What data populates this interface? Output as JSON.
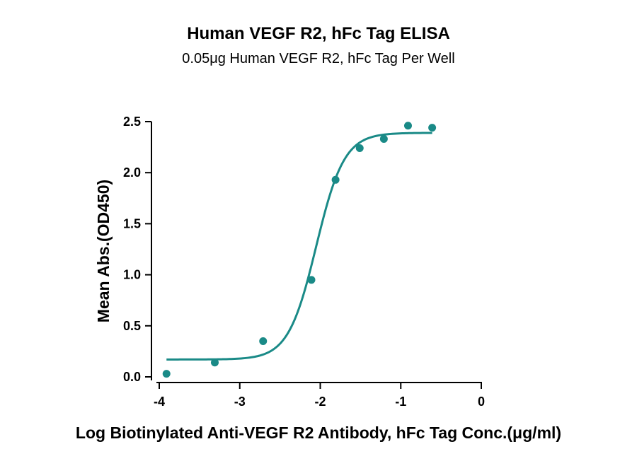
{
  "chart_data": {
    "type": "scatter",
    "title": "Human VEGF R2, hFc Tag ELISA",
    "subtitle": "0.05μg Human VEGF R2, hFc Tag Per Well",
    "xlabel": "Log Biotinylated Anti-VEGF R2 Antibody, hFc Tag Conc.(μg/ml)",
    "ylabel": "Mean Abs.(OD450)",
    "xlim": [
      -4,
      0
    ],
    "ylim": [
      0,
      2.5
    ],
    "x_ticks": [
      -4,
      -3,
      -2,
      -1,
      0
    ],
    "x_tick_labels": [
      "-4",
      "-3",
      "-2",
      "-1",
      "0"
    ],
    "y_ticks": [
      0,
      0.5,
      1.0,
      1.5,
      2.0,
      2.5
    ],
    "y_tick_labels": [
      "0.0",
      "0.5",
      "1.0",
      "1.5",
      "2.0",
      "2.5"
    ],
    "grid": false,
    "legend": "none",
    "color": "#1a8a87",
    "series": [
      {
        "x": [
          -3.91,
          -3.31,
          -2.71,
          -2.11,
          -1.81,
          -1.51,
          -1.21,
          -0.91,
          -0.61
        ],
        "y": [
          0.03,
          0.14,
          0.35,
          0.95,
          1.93,
          2.24,
          2.33,
          2.46,
          2.44
        ]
      }
    ],
    "fit": {
      "type": "4PL",
      "bottom": 0.17,
      "top": 2.39,
      "log_ec50": -2.05,
      "hill_slope": 2.5
    }
  }
}
